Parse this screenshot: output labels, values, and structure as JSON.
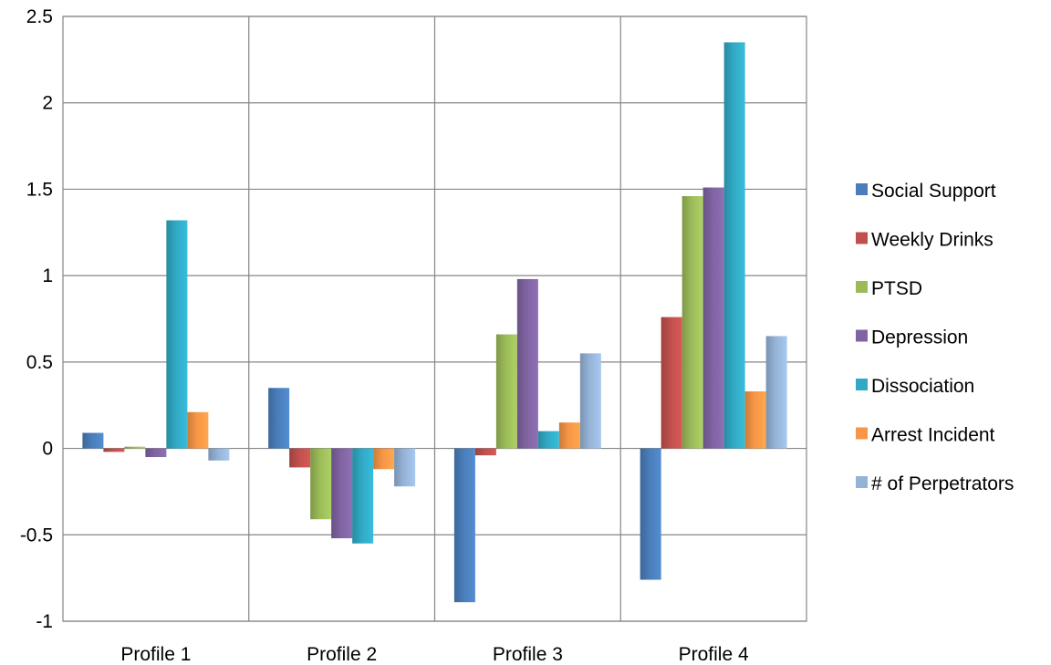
{
  "chart_data": {
    "type": "bar",
    "title": "",
    "xlabel": "",
    "ylabel": "",
    "ylim": [
      -1,
      2.5
    ],
    "yticks": [
      -1,
      -0.5,
      0,
      0.5,
      1,
      1.5,
      2,
      2.5
    ],
    "ytick_labels": [
      "-1",
      "-0.5",
      "0",
      "0.5",
      "1",
      "1.5",
      "2",
      "2.5"
    ],
    "grid": true,
    "legend_position": "right",
    "categories": [
      "Profile 1",
      "Profile 2",
      "Profile 3",
      "Profile 4"
    ],
    "series": [
      {
        "name": "Social Support",
        "color": "#4A7EBB",
        "values": [
          0.09,
          0.35,
          -0.89,
          -0.76
        ]
      },
      {
        "name": "Weekly Drinks",
        "color": "#C0504D",
        "values": [
          -0.02,
          -0.11,
          -0.04,
          0.76
        ]
      },
      {
        "name": "PTSD",
        "color": "#9BBB59",
        "values": [
          0.01,
          -0.41,
          0.66,
          1.46
        ]
      },
      {
        "name": "Depression",
        "color": "#8064A2",
        "values": [
          -0.05,
          -0.52,
          0.98,
          1.51
        ]
      },
      {
        "name": "Dissociation",
        "color": "#31A9C4",
        "values": [
          1.32,
          -0.55,
          0.1,
          2.35
        ]
      },
      {
        "name": "Arrest Incident",
        "color": "#F79646",
        "values": [
          0.21,
          -0.12,
          0.15,
          0.33
        ]
      },
      {
        "name": "# of Perpetrators",
        "color": "#95B3D7",
        "values": [
          -0.07,
          -0.22,
          0.55,
          0.65
        ]
      }
    ]
  }
}
